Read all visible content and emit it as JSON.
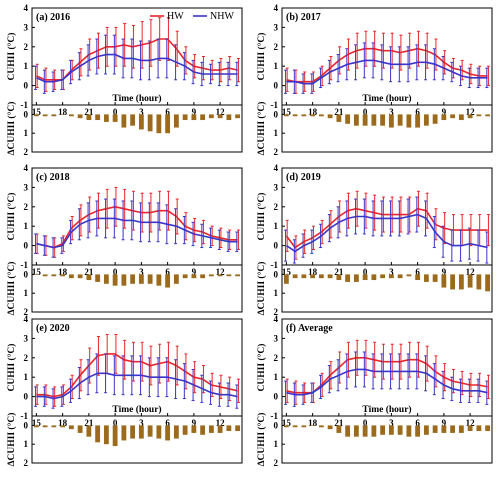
{
  "legend": {
    "hw": "HW",
    "nhw": "NHW"
  },
  "colors": {
    "hw": "#e8262a",
    "nhw": "#3b34c8",
    "bar": "#9b6a1c",
    "axis": "#000000"
  },
  "chart_data": [
    {
      "type": "line",
      "title": "(a) 2016",
      "ylabel": "CUHII (°C)",
      "xlabel": "Time (hour)",
      "ylim": [
        -1,
        4
      ],
      "yticks": [
        -1,
        0,
        1,
        2,
        3,
        4
      ],
      "x": [
        15,
        16,
        17,
        18,
        19,
        20,
        21,
        22,
        23,
        0,
        1,
        2,
        3,
        4,
        5,
        6,
        7,
        8,
        9,
        10,
        11,
        12,
        13,
        14
      ],
      "xtick_labels": [
        "15",
        "18",
        "21",
        "0",
        "3",
        "6",
        "9",
        "12"
      ],
      "series": [
        {
          "name": "HW",
          "values": [
            0.5,
            0.3,
            0.3,
            0.3,
            0.8,
            1.2,
            1.6,
            1.8,
            2.0,
            2.0,
            2.1,
            2.0,
            2.1,
            2.2,
            2.4,
            2.4,
            1.9,
            1.3,
            1.0,
            0.9,
            0.8,
            0.8,
            0.9,
            0.8
          ],
          "error": [
            0.6,
            0.6,
            0.5,
            0.5,
            0.5,
            0.7,
            0.8,
            0.9,
            1.0,
            1.0,
            1.1,
            1.1,
            1.2,
            1.2,
            1.1,
            1.1,
            0.9,
            0.7,
            0.6,
            0.6,
            0.5,
            0.6,
            0.6,
            0.6
          ]
        },
        {
          "name": "NHW",
          "values": [
            0.4,
            0.2,
            0.2,
            0.3,
            0.7,
            1.0,
            1.3,
            1.5,
            1.6,
            1.6,
            1.4,
            1.4,
            1.3,
            1.3,
            1.4,
            1.4,
            1.2,
            1.0,
            0.7,
            0.6,
            0.6,
            0.6,
            0.6,
            0.6
          ],
          "error": [
            0.6,
            0.6,
            0.5,
            0.5,
            0.6,
            0.7,
            0.8,
            0.9,
            1.0,
            1.0,
            1.0,
            1.0,
            1.0,
            1.0,
            1.0,
            1.0,
            0.9,
            0.7,
            0.6,
            0.6,
            0.5,
            0.6,
            0.6,
            0.6
          ]
        }
      ],
      "delta": {
        "ylabel": "ΔCUHII (°C)",
        "ylim": [
          -0.5,
          2
        ],
        "yticks": [
          0,
          1,
          2
        ],
        "values": [
          0.1,
          0.1,
          0.1,
          0.0,
          0.1,
          0.2,
          0.3,
          0.3,
          0.4,
          0.4,
          0.7,
          0.6,
          0.8,
          0.9,
          1.0,
          1.0,
          0.7,
          0.3,
          0.3,
          0.3,
          0.2,
          0.2,
          0.3,
          0.2
        ]
      }
    },
    {
      "type": "line",
      "title": "(b) 2017",
      "ylabel": "CUHII (°C)",
      "xlabel": "Time (hour)",
      "ylim": [
        -1,
        4
      ],
      "yticks": [
        -1,
        0,
        1,
        2,
        3,
        4
      ],
      "x": [
        15,
        16,
        17,
        18,
        19,
        20,
        21,
        22,
        23,
        0,
        1,
        2,
        3,
        4,
        5,
        6,
        7,
        8,
        9,
        10,
        11,
        12,
        13,
        14
      ],
      "xtick_labels": [
        "15",
        "18",
        "21",
        "0",
        "3",
        "6",
        "9",
        "12"
      ],
      "series": [
        {
          "name": "HW",
          "values": [
            0.3,
            0.2,
            0.2,
            0.2,
            0.5,
            0.9,
            1.3,
            1.6,
            1.8,
            1.9,
            1.9,
            1.8,
            1.8,
            1.7,
            1.8,
            1.9,
            1.8,
            1.6,
            1.2,
            0.9,
            0.8,
            0.6,
            0.5,
            0.5
          ],
          "error": [
            0.6,
            0.6,
            0.5,
            0.5,
            0.5,
            0.6,
            0.7,
            0.8,
            0.9,
            0.9,
            0.9,
            0.9,
            0.9,
            0.9,
            0.9,
            0.9,
            0.9,
            0.8,
            0.6,
            0.5,
            0.5,
            0.5,
            0.5,
            0.5
          ]
        },
        {
          "name": "NHW",
          "values": [
            0.2,
            0.2,
            0.1,
            0.1,
            0.4,
            0.7,
            0.9,
            1.1,
            1.2,
            1.3,
            1.3,
            1.2,
            1.1,
            1.1,
            1.1,
            1.2,
            1.2,
            1.1,
            0.9,
            0.7,
            0.5,
            0.4,
            0.4,
            0.4
          ],
          "error": [
            0.6,
            0.6,
            0.5,
            0.5,
            0.5,
            0.6,
            0.7,
            0.8,
            0.9,
            0.9,
            0.9,
            0.9,
            0.9,
            0.9,
            0.9,
            0.9,
            0.9,
            0.8,
            0.6,
            0.5,
            0.5,
            0.5,
            0.5,
            0.5
          ]
        }
      ],
      "delta": {
        "ylabel": "ΔCUHII (°C)",
        "ylim": [
          -0.5,
          2
        ],
        "yticks": [
          0,
          1,
          2
        ],
        "values": [
          0.1,
          0.1,
          0.1,
          0.1,
          0.1,
          0.2,
          0.4,
          0.5,
          0.6,
          0.6,
          0.6,
          0.6,
          0.7,
          0.6,
          0.7,
          0.7,
          0.6,
          0.5,
          0.3,
          0.2,
          0.3,
          0.2,
          0.1,
          0.1
        ]
      }
    },
    {
      "type": "line",
      "title": "(c) 2018",
      "ylabel": "CUHII (°C)",
      "xlabel": "",
      "ylim": [
        -1,
        4
      ],
      "yticks": [
        -1,
        0,
        1,
        2,
        3,
        4
      ],
      "x": [
        15,
        16,
        17,
        18,
        19,
        20,
        21,
        22,
        23,
        0,
        1,
        2,
        3,
        4,
        5,
        6,
        7,
        8,
        9,
        10,
        11,
        12,
        13,
        14
      ],
      "xtick_labels": [
        "15",
        "18",
        "21",
        "0",
        "3",
        "6",
        "9",
        "12"
      ],
      "series": [
        {
          "name": "HW",
          "values": [
            0.1,
            0.0,
            -0.1,
            0.1,
            0.9,
            1.3,
            1.6,
            1.8,
            1.9,
            2.0,
            1.9,
            1.8,
            1.7,
            1.7,
            1.8,
            1.8,
            1.5,
            1.0,
            0.8,
            0.7,
            0.5,
            0.4,
            0.3,
            0.3
          ],
          "error": [
            0.5,
            0.5,
            0.5,
            0.4,
            0.6,
            0.8,
            0.9,
            0.9,
            1.0,
            1.0,
            1.0,
            1.0,
            1.0,
            1.0,
            1.0,
            1.0,
            0.9,
            0.7,
            0.6,
            0.6,
            0.5,
            0.5,
            0.5,
            0.5
          ]
        },
        {
          "name": "NHW",
          "values": [
            0.1,
            0.0,
            -0.1,
            0.0,
            0.7,
            1.1,
            1.3,
            1.4,
            1.4,
            1.4,
            1.3,
            1.3,
            1.2,
            1.2,
            1.2,
            1.1,
            1.0,
            0.8,
            0.6,
            0.5,
            0.4,
            0.3,
            0.2,
            0.2
          ],
          "error": [
            0.5,
            0.5,
            0.5,
            0.4,
            0.6,
            0.8,
            0.9,
            0.9,
            1.0,
            1.0,
            1.0,
            1.0,
            1.0,
            1.0,
            1.0,
            1.0,
            0.9,
            0.7,
            0.6,
            0.6,
            0.5,
            0.5,
            0.5,
            0.5
          ]
        }
      ],
      "delta": {
        "ylabel": "ΔCUHII (°C)",
        "ylim": [
          -0.5,
          2
        ],
        "yticks": [
          0,
          1,
          2
        ],
        "values": [
          0.0,
          0.1,
          0.1,
          0.1,
          0.2,
          0.2,
          0.3,
          0.4,
          0.5,
          0.6,
          0.6,
          0.5,
          0.5,
          0.5,
          0.6,
          0.7,
          0.5,
          0.2,
          0.2,
          0.2,
          0.1,
          0.1,
          0.1,
          0.1
        ]
      }
    },
    {
      "type": "line",
      "title": "(d) 2019",
      "ylabel": "CUHII (°C)",
      "xlabel": "",
      "ylim": [
        -1,
        4
      ],
      "yticks": [
        -1,
        0,
        1,
        2,
        3,
        4
      ],
      "x": [
        15,
        16,
        17,
        18,
        19,
        20,
        21,
        22,
        23,
        0,
        1,
        2,
        3,
        4,
        5,
        6,
        7,
        8,
        9,
        10,
        11,
        12,
        13,
        14
      ],
      "xtick_labels": [
        "15",
        "18",
        "21",
        "0",
        "3",
        "6",
        "9",
        "12"
      ],
      "series": [
        {
          "name": "HW",
          "values": [
            0.5,
            -0.1,
            0.2,
            0.4,
            0.7,
            1.1,
            1.5,
            1.8,
            1.9,
            1.8,
            1.7,
            1.6,
            1.6,
            1.6,
            1.6,
            1.9,
            1.8,
            1.1,
            0.9,
            0.8,
            0.8,
            0.8,
            0.8,
            0.8
          ],
          "error": [
            0.8,
            0.6,
            0.6,
            0.6,
            0.6,
            0.7,
            0.8,
            0.9,
            0.9,
            0.9,
            0.9,
            0.9,
            0.9,
            0.9,
            0.9,
            0.9,
            0.9,
            0.8,
            0.8,
            0.8,
            0.8,
            0.8,
            0.8,
            0.8
          ]
        },
        {
          "name": "NHW",
          "values": [
            0.0,
            -0.3,
            0.0,
            0.2,
            0.5,
            0.9,
            1.2,
            1.4,
            1.5,
            1.5,
            1.4,
            1.4,
            1.4,
            1.4,
            1.5,
            1.6,
            1.4,
            0.7,
            0.2,
            0.0,
            0.0,
            0.1,
            0.0,
            -0.1
          ],
          "error": [
            0.8,
            0.6,
            0.6,
            0.6,
            0.6,
            0.7,
            0.8,
            0.9,
            0.9,
            0.9,
            0.9,
            0.9,
            0.9,
            0.9,
            0.9,
            0.9,
            0.9,
            0.8,
            0.8,
            0.8,
            0.8,
            0.8,
            0.8,
            0.8
          ]
        }
      ],
      "delta": {
        "ylabel": "ΔCUHII (°C)",
        "ylim": [
          -0.5,
          2
        ],
        "yticks": [
          0,
          1,
          2
        ],
        "values": [
          0.5,
          0.2,
          0.2,
          0.2,
          0.2,
          0.2,
          0.3,
          0.4,
          0.4,
          0.3,
          0.3,
          0.2,
          0.2,
          0.2,
          0.1,
          0.3,
          0.4,
          0.4,
          0.7,
          0.8,
          0.8,
          0.7,
          0.8,
          0.9
        ]
      }
    },
    {
      "type": "line",
      "title": "(e) 2020",
      "ylabel": "CUHII (°C)",
      "xlabel": "Time (hour)",
      "ylim": [
        -1,
        4
      ],
      "yticks": [
        -1,
        0,
        1,
        2,
        3,
        4
      ],
      "x": [
        15,
        16,
        17,
        18,
        19,
        20,
        21,
        22,
        23,
        0,
        1,
        2,
        3,
        4,
        5,
        6,
        7,
        8,
        9,
        10,
        11,
        12,
        13,
        14
      ],
      "xtick_labels": [
        "15",
        "18",
        "21",
        "0",
        "3",
        "6",
        "9",
        "12"
      ],
      "series": [
        {
          "name": "HW",
          "values": [
            0.1,
            0.1,
            0.0,
            0.1,
            0.5,
            1.1,
            1.6,
            2.1,
            2.2,
            2.2,
            1.9,
            1.8,
            1.8,
            1.6,
            1.7,
            1.8,
            1.6,
            1.3,
            1.0,
            0.9,
            0.6,
            0.5,
            0.4,
            0.3
          ],
          "error": [
            0.5,
            0.5,
            0.5,
            0.5,
            0.6,
            0.8,
            0.9,
            1.0,
            1.0,
            1.0,
            1.0,
            1.0,
            1.0,
            1.0,
            1.0,
            1.0,
            1.0,
            0.9,
            0.8,
            0.7,
            0.6,
            0.6,
            0.6,
            0.6
          ]
        },
        {
          "name": "NHW",
          "values": [
            0.0,
            0.0,
            -0.1,
            0.0,
            0.3,
            0.7,
            1.0,
            1.2,
            1.2,
            1.1,
            1.1,
            1.1,
            1.1,
            1.0,
            1.0,
            1.0,
            0.9,
            0.8,
            0.6,
            0.4,
            0.2,
            0.1,
            0.1,
            0.0
          ],
          "error": [
            0.5,
            0.5,
            0.5,
            0.5,
            0.6,
            0.8,
            0.9,
            1.0,
            1.0,
            1.0,
            1.0,
            1.0,
            1.0,
            1.0,
            1.0,
            1.0,
            1.0,
            0.9,
            0.8,
            0.7,
            0.6,
            0.6,
            0.6,
            0.6
          ]
        }
      ],
      "delta": {
        "ylabel": "ΔCUHII (°C)",
        "ylim": [
          -0.5,
          2
        ],
        "yticks": [
          0,
          1,
          2
        ],
        "values": [
          0.1,
          0.1,
          0.1,
          0.1,
          0.2,
          0.4,
          0.6,
          0.9,
          1.0,
          1.1,
          0.8,
          0.7,
          0.7,
          0.6,
          0.7,
          0.8,
          0.7,
          0.5,
          0.4,
          0.5,
          0.4,
          0.4,
          0.3,
          0.3
        ]
      }
    },
    {
      "type": "line",
      "title": "(f) Average",
      "ylabel": "CUHII (°C)",
      "xlabel": "Time (hour)",
      "ylim": [
        -1,
        4
      ],
      "yticks": [
        -1,
        0,
        1,
        2,
        3,
        4
      ],
      "x": [
        15,
        16,
        17,
        18,
        19,
        20,
        21,
        22,
        23,
        0,
        1,
        2,
        3,
        4,
        5,
        6,
        7,
        8,
        9,
        10,
        11,
        12,
        13,
        14
      ],
      "xtick_labels": [
        "15",
        "18",
        "21",
        "0",
        "3",
        "6",
        "9",
        "12"
      ],
      "series": [
        {
          "name": "HW",
          "values": [
            0.3,
            0.2,
            0.2,
            0.2,
            0.6,
            1.1,
            1.5,
            1.9,
            2.0,
            2.0,
            1.9,
            1.8,
            1.8,
            1.8,
            1.9,
            1.9,
            1.7,
            1.3,
            1.0,
            0.8,
            0.7,
            0.6,
            0.6,
            0.5
          ],
          "error": [
            0.6,
            0.6,
            0.5,
            0.5,
            0.6,
            0.7,
            0.8,
            0.9,
            0.9,
            0.9,
            0.9,
            0.9,
            0.9,
            0.9,
            0.9,
            0.9,
            0.9,
            0.8,
            0.7,
            0.6,
            0.6,
            0.6,
            0.6,
            0.6
          ]
        },
        {
          "name": "NHW",
          "values": [
            0.2,
            0.1,
            0.1,
            0.2,
            0.5,
            0.9,
            1.1,
            1.3,
            1.4,
            1.4,
            1.3,
            1.3,
            1.3,
            1.3,
            1.3,
            1.3,
            1.2,
            0.9,
            0.6,
            0.4,
            0.3,
            0.3,
            0.3,
            0.2
          ],
          "error": [
            0.6,
            0.6,
            0.5,
            0.5,
            0.6,
            0.7,
            0.8,
            0.9,
            0.9,
            0.9,
            0.9,
            0.9,
            0.9,
            0.9,
            0.9,
            0.9,
            0.9,
            0.8,
            0.7,
            0.6,
            0.6,
            0.6,
            0.6,
            0.6
          ]
        }
      ],
      "delta": {
        "ylabel": "ΔCUHII (°C)",
        "ylim": [
          -0.5,
          2
        ],
        "yticks": [
          0,
          1,
          2
        ],
        "values": [
          0.1,
          0.1,
          0.1,
          0.0,
          0.1,
          0.2,
          0.4,
          0.6,
          0.6,
          0.6,
          0.6,
          0.5,
          0.5,
          0.5,
          0.6,
          0.6,
          0.5,
          0.4,
          0.4,
          0.4,
          0.4,
          0.3,
          0.3,
          0.3
        ]
      }
    }
  ]
}
